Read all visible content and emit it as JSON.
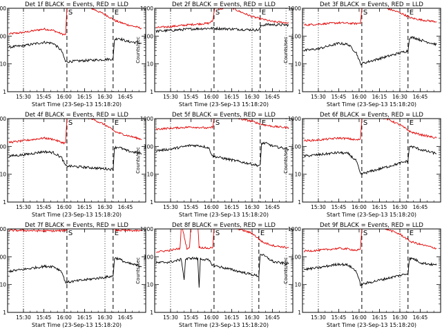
{
  "page": {
    "background": "#ffffff"
  },
  "colors": {
    "events": "#000000",
    "lld": "#e00000",
    "axes": "#000000"
  },
  "shared": {
    "xlabel": "Start Time (23-Sep-13 15:18:20)",
    "ylabel": "Counts/sec",
    "xticks": [
      "15:30",
      "15:45",
      "16:00",
      "16:15",
      "16:30",
      "16:45"
    ],
    "yticks": [
      "1",
      "10",
      "100",
      "1000"
    ],
    "ylim": [
      1,
      1000
    ],
    "yscale": "log"
  },
  "panels": [
    {
      "title": "Det 1f BLACK = Events, RED = LLD",
      "dashed_lines": [
        {
          "label": "S",
          "time": "16:02"
        },
        {
          "label": "E",
          "time": "16:36"
        }
      ],
      "dotted_times": [
        "15:30",
        "16:30"
      ],
      "events_anchors": [
        [
          "15:19",
          40
        ],
        [
          "15:30",
          45
        ],
        [
          "15:45",
          60
        ],
        [
          "15:52",
          55
        ],
        [
          "15:58",
          30
        ],
        [
          "16:01",
          12
        ],
        [
          "16:36",
          15
        ],
        [
          "16:37",
          75
        ],
        [
          "16:40",
          85
        ],
        [
          "16:46",
          65
        ],
        [
          "16:57",
          55
        ]
      ],
      "lld_anchors": [
        [
          "15:19",
          120
        ],
        [
          "15:30",
          135
        ],
        [
          "15:45",
          180
        ],
        [
          "15:52",
          160
        ],
        [
          "15:58",
          120
        ],
        [
          "16:01",
          110
        ],
        [
          "16:02",
          1000
        ],
        [
          "16:04",
          1400
        ],
        [
          "16:20",
          1000
        ],
        [
          "16:30",
          600
        ],
        [
          "16:38",
          350
        ],
        [
          "16:46",
          260
        ],
        [
          "16:57",
          190
        ]
      ]
    },
    {
      "title": "Det 2f BLACK = Events, RED = LLD",
      "dashed_lines": [
        {
          "label": "S",
          "time": "16:02"
        },
        {
          "label": "E",
          "time": "16:36"
        }
      ],
      "dotted_times": [
        "15:30",
        "16:30",
        "16:55"
      ],
      "events_anchors": [
        [
          "15:19",
          150
        ],
        [
          "15:30",
          160
        ],
        [
          "15:45",
          180
        ],
        [
          "15:58",
          190
        ],
        [
          "16:01",
          190
        ],
        [
          "16:35",
          165
        ],
        [
          "16:37",
          240
        ],
        [
          "16:40",
          260
        ],
        [
          "16:57",
          250
        ]
      ],
      "lld_anchors": [
        [
          "15:19",
          200
        ],
        [
          "15:30",
          220
        ],
        [
          "15:45",
          260
        ],
        [
          "15:58",
          290
        ],
        [
          "16:01",
          350
        ],
        [
          "16:03",
          1400
        ],
        [
          "16:06",
          900
        ],
        [
          "16:08",
          900
        ],
        [
          "16:10",
          1400
        ],
        [
          "16:20",
          800
        ],
        [
          "16:30",
          500
        ],
        [
          "16:45",
          330
        ],
        [
          "16:57",
          300
        ]
      ]
    },
    {
      "title": "Det 3f BLACK = Events, RED = LLD",
      "dashed_lines": [
        {
          "label": "S",
          "time": "16:02"
        },
        {
          "label": "E",
          "time": "16:36"
        }
      ],
      "dotted_times": [
        "15:30",
        "16:30"
      ],
      "events_anchors": [
        [
          "15:19",
          30
        ],
        [
          "15:30",
          35
        ],
        [
          "15:45",
          55
        ],
        [
          "15:52",
          50
        ],
        [
          "15:58",
          25
        ],
        [
          "16:01",
          10
        ],
        [
          "16:36",
          30
        ],
        [
          "16:37",
          85
        ],
        [
          "16:40",
          90
        ],
        [
          "16:46",
          70
        ],
        [
          "16:57",
          50
        ]
      ],
      "lld_anchors": [
        [
          "15:19",
          250
        ],
        [
          "15:30",
          270
        ],
        [
          "15:45",
          300
        ],
        [
          "15:52",
          290
        ],
        [
          "15:58",
          280
        ],
        [
          "16:01",
          300
        ],
        [
          "16:02",
          1000
        ],
        [
          "16:04",
          1400
        ],
        [
          "16:20",
          1000
        ],
        [
          "16:30",
          700
        ],
        [
          "16:38",
          450
        ],
        [
          "16:46",
          380
        ],
        [
          "16:57",
          330
        ]
      ]
    },
    {
      "title": "Det 4f BLACK = Events, RED = LLD",
      "dashed_lines": [
        {
          "label": "S",
          "time": "16:02"
        },
        {
          "label": "E",
          "time": "16:36"
        }
      ],
      "dotted_times": [
        "15:30",
        "16:30"
      ],
      "events_anchors": [
        [
          "15:19",
          45
        ],
        [
          "15:30",
          50
        ],
        [
          "15:45",
          65
        ],
        [
          "15:52",
          60
        ],
        [
          "15:58",
          40
        ],
        [
          "16:01",
          20
        ],
        [
          "16:36",
          15
        ],
        [
          "16:37",
          90
        ],
        [
          "16:40",
          95
        ],
        [
          "16:46",
          70
        ],
        [
          "16:57",
          55
        ]
      ],
      "lld_anchors": [
        [
          "15:19",
          140
        ],
        [
          "15:30",
          160
        ],
        [
          "15:45",
          200
        ],
        [
          "15:52",
          180
        ],
        [
          "15:58",
          140
        ],
        [
          "16:01",
          130
        ],
        [
          "16:02",
          1000
        ],
        [
          "16:04",
          1400
        ],
        [
          "16:20",
          1000
        ],
        [
          "16:30",
          600
        ],
        [
          "16:38",
          330
        ],
        [
          "16:46",
          250
        ],
        [
          "16:57",
          180
        ]
      ]
    },
    {
      "title": "Det 5f BLACK = Events, RED = LLD",
      "dashed_lines": [
        {
          "label": "S",
          "time": "16:02"
        },
        {
          "label": "E",
          "time": "16:36"
        }
      ],
      "dotted_times": [
        "15:30",
        "16:30",
        "16:55"
      ],
      "events_anchors": [
        [
          "15:19",
          70
        ],
        [
          "15:30",
          80
        ],
        [
          "15:45",
          110
        ],
        [
          "15:52",
          105
        ],
        [
          "15:58",
          90
        ],
        [
          "16:01",
          45
        ],
        [
          "16:36",
          20
        ],
        [
          "16:37",
          130
        ],
        [
          "16:40",
          130
        ],
        [
          "16:46",
          100
        ],
        [
          "16:57",
          80
        ]
      ],
      "lld_anchors": [
        [
          "15:19",
          420
        ],
        [
          "15:30",
          450
        ],
        [
          "15:45",
          500
        ],
        [
          "15:52",
          480
        ],
        [
          "15:58",
          450
        ],
        [
          "16:01",
          500
        ],
        [
          "16:02",
          1000
        ],
        [
          "16:04",
          1400
        ],
        [
          "16:20",
          1000
        ],
        [
          "16:30",
          800
        ],
        [
          "16:38",
          600
        ],
        [
          "16:46",
          520
        ],
        [
          "16:57",
          470
        ]
      ]
    },
    {
      "title": "Det 6f BLACK = Events, RED = LLD",
      "dashed_lines": [
        {
          "label": "S",
          "time": "16:02"
        },
        {
          "label": "E",
          "time": "16:36"
        }
      ],
      "dotted_times": [
        "15:30",
        "16:30"
      ],
      "events_anchors": [
        [
          "15:19",
          45
        ],
        [
          "15:30",
          50
        ],
        [
          "15:45",
          60
        ],
        [
          "15:52",
          55
        ],
        [
          "15:58",
          30
        ],
        [
          "16:01",
          10
        ],
        [
          "16:36",
          30
        ],
        [
          "16:37",
          100
        ],
        [
          "16:40",
          95
        ],
        [
          "16:46",
          75
        ],
        [
          "16:57",
          55
        ]
      ],
      "lld_anchors": [
        [
          "15:19",
          160
        ],
        [
          "15:30",
          170
        ],
        [
          "15:45",
          200
        ],
        [
          "15:52",
          190
        ],
        [
          "15:58",
          170
        ],
        [
          "16:01",
          180
        ],
        [
          "16:02",
          1000
        ],
        [
          "16:04",
          1400
        ],
        [
          "16:20",
          1000
        ],
        [
          "16:30",
          600
        ],
        [
          "16:38",
          330
        ],
        [
          "16:46",
          260
        ],
        [
          "16:57",
          200
        ]
      ]
    },
    {
      "title": "Det 7f BLACK = Events, RED = LLD",
      "dashed_lines": [
        {
          "label": "S",
          "time": "16:02"
        },
        {
          "label": "E",
          "time": "16:36"
        }
      ],
      "dotted_times": [
        "15:30",
        "16:30"
      ],
      "events_anchors": [
        [
          "15:19",
          30
        ],
        [
          "15:30",
          35
        ],
        [
          "15:45",
          45
        ],
        [
          "15:52",
          45
        ],
        [
          "15:58",
          30
        ],
        [
          "16:01",
          12
        ],
        [
          "16:36",
          20
        ],
        [
          "16:37",
          90
        ],
        [
          "16:40",
          85
        ],
        [
          "16:46",
          60
        ],
        [
          "16:57",
          45
        ]
      ],
      "lld_anchors": [
        [
          "15:19",
          880
        ],
        [
          "15:30",
          880
        ],
        [
          "15:45",
          850
        ],
        [
          "15:52",
          850
        ],
        [
          "15:58",
          860
        ],
        [
          "16:01",
          900
        ],
        [
          "16:03",
          1100
        ],
        [
          "16:35",
          1100
        ],
        [
          "16:38",
          900
        ],
        [
          "16:46",
          880
        ],
        [
          "16:57",
          850
        ]
      ]
    },
    {
      "title": "Det 8f BLACK = Events, RED = LLD",
      "dashed_lines": [
        {
          "label": "S",
          "time": "16:02"
        },
        {
          "label": "E",
          "time": "16:35"
        }
      ],
      "dotted_times": [
        "15:30",
        "16:30",
        "16:55"
      ],
      "events_anchors": [
        [
          "15:19",
          60
        ],
        [
          "15:30",
          65
        ],
        [
          "15:38",
          80
        ],
        [
          "15:40",
          15
        ],
        [
          "15:41",
          80
        ],
        [
          "15:45",
          90
        ],
        [
          "15:50",
          85
        ],
        [
          "15:51",
          8
        ],
        [
          "15:52",
          85
        ],
        [
          "15:58",
          75
        ],
        [
          "16:01",
          50
        ],
        [
          "16:35",
          20
        ],
        [
          "16:36",
          130
        ],
        [
          "16:40",
          100
        ],
        [
          "16:46",
          65
        ],
        [
          "16:57",
          55
        ]
      ],
      "lld_anchors": [
        [
          "15:19",
          150
        ],
        [
          "15:30",
          170
        ],
        [
          "15:37",
          200
        ],
        [
          "15:38",
          1500
        ],
        [
          "15:42",
          200
        ],
        [
          "15:44",
          210
        ],
        [
          "15:45",
          1500
        ],
        [
          "15:50",
          1500
        ],
        [
          "15:51",
          220
        ],
        [
          "15:58",
          200
        ],
        [
          "16:01",
          220
        ],
        [
          "16:02",
          1000
        ],
        [
          "16:04",
          1400
        ],
        [
          "16:20",
          1000
        ],
        [
          "16:30",
          700
        ],
        [
          "16:38",
          330
        ],
        [
          "16:46",
          250
        ],
        [
          "16:57",
          210
        ]
      ]
    },
    {
      "title": "Det 9f BLACK = Events, RED = LLD",
      "dashed_lines": [
        {
          "label": "S",
          "time": "16:02"
        },
        {
          "label": "E",
          "time": "16:36"
        }
      ],
      "dotted_times": [
        "15:30",
        "16:30"
      ],
      "events_anchors": [
        [
          "15:19",
          35
        ],
        [
          "15:30",
          40
        ],
        [
          "15:45",
          55
        ],
        [
          "15:52",
          50
        ],
        [
          "15:58",
          30
        ],
        [
          "16:01",
          10
        ],
        [
          "16:36",
          25
        ],
        [
          "16:37",
          85
        ],
        [
          "16:40",
          85
        ],
        [
          "16:46",
          60
        ],
        [
          "16:57",
          50
        ]
      ],
      "lld_anchors": [
        [
          "15:19",
          160
        ],
        [
          "15:30",
          170
        ],
        [
          "15:45",
          200
        ],
        [
          "15:52",
          190
        ],
        [
          "15:58",
          170
        ],
        [
          "16:01",
          180
        ],
        [
          "16:02",
          1000
        ],
        [
          "16:04",
          1400
        ],
        [
          "16:20",
          1000
        ],
        [
          "16:30",
          650
        ],
        [
          "16:38",
          350
        ],
        [
          "16:46",
          270
        ],
        [
          "16:57",
          200
        ]
      ]
    }
  ],
  "chart_data": {
    "type": "line",
    "yscale": "log",
    "ylim": [
      1,
      1000
    ],
    "x_ticks": [
      "15:30",
      "15:45",
      "16:00",
      "16:15",
      "16:30",
      "16:45"
    ],
    "xlabel": "Start Time (23-Sep-13 15:18:20)",
    "ylabel": "Counts/sec",
    "series_names": [
      "Events",
      "LLD"
    ]
  }
}
